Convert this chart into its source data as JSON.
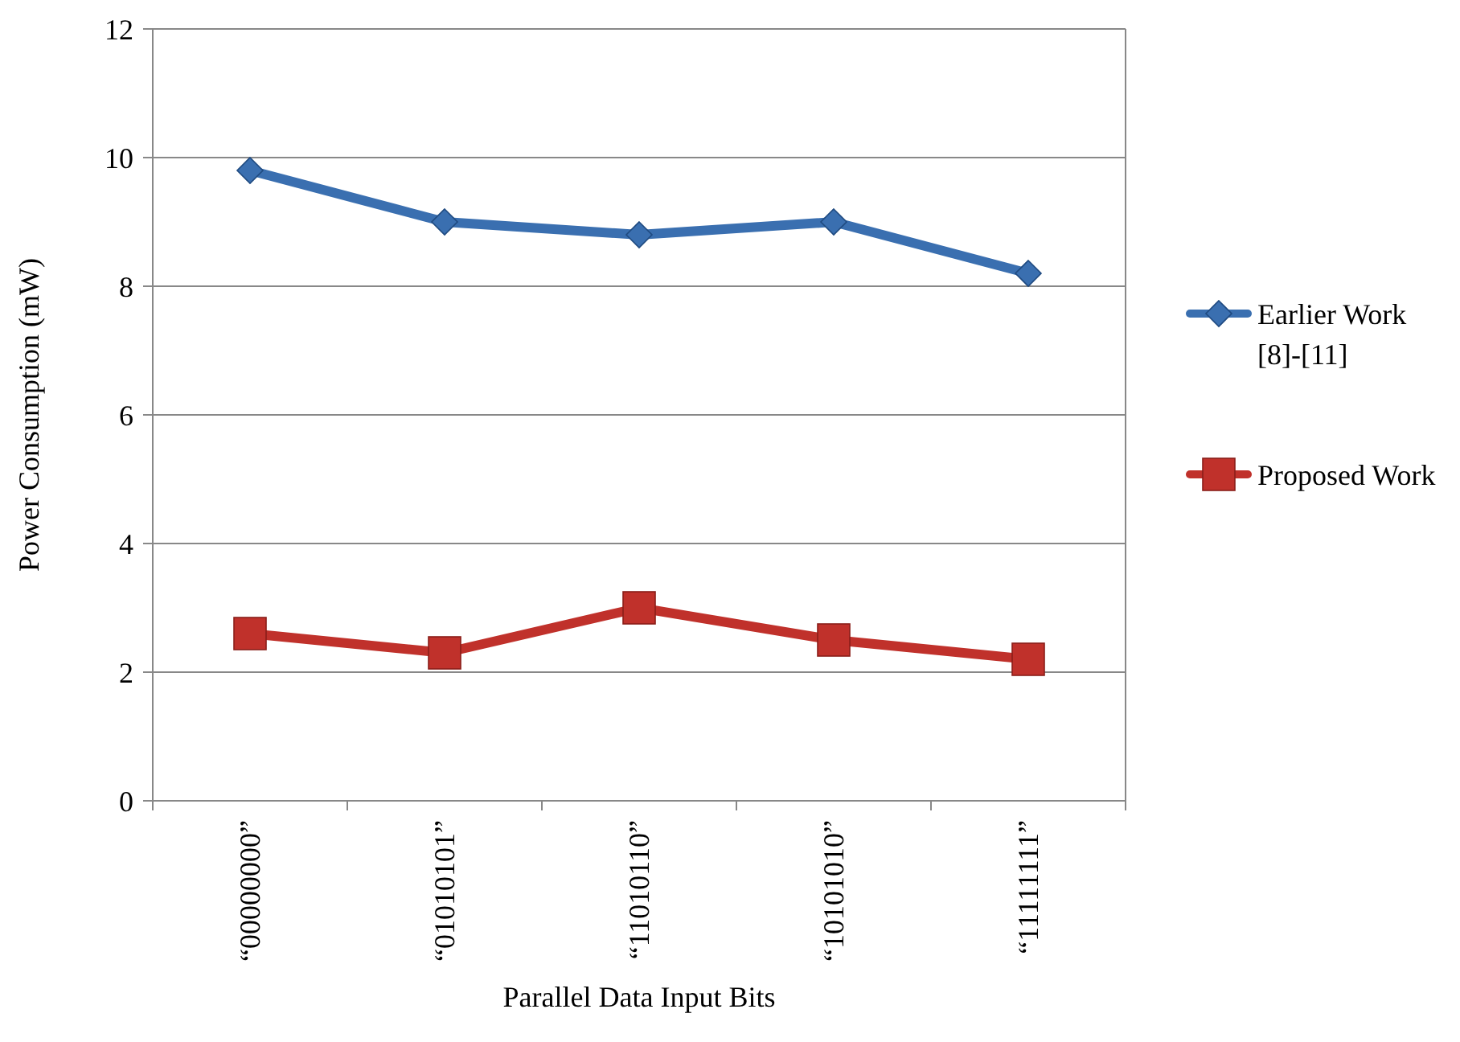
{
  "chart_data": {
    "type": "line",
    "xlabel": "Parallel Data Input Bits",
    "ylabel": "Power Consumption (mW)",
    "categories": [
      "“00000000”",
      "“01010101”",
      "“11010110”",
      "“10101010”",
      "“11111111”"
    ],
    "series": [
      {
        "name": "Earlier Work [8]-[11]",
        "color": "#3a6fb0",
        "marker": "diamond",
        "values": [
          9.8,
          9.0,
          8.8,
          9.0,
          8.2
        ]
      },
      {
        "name": "Proposed Work",
        "color": "#c0312b",
        "marker": "square",
        "values": [
          2.6,
          2.3,
          3.0,
          2.5,
          2.2
        ]
      }
    ],
    "ylim": [
      0,
      12
    ],
    "yticks": [
      0,
      2,
      4,
      6,
      8,
      10,
      12
    ],
    "grid": "y",
    "legend": "right"
  }
}
